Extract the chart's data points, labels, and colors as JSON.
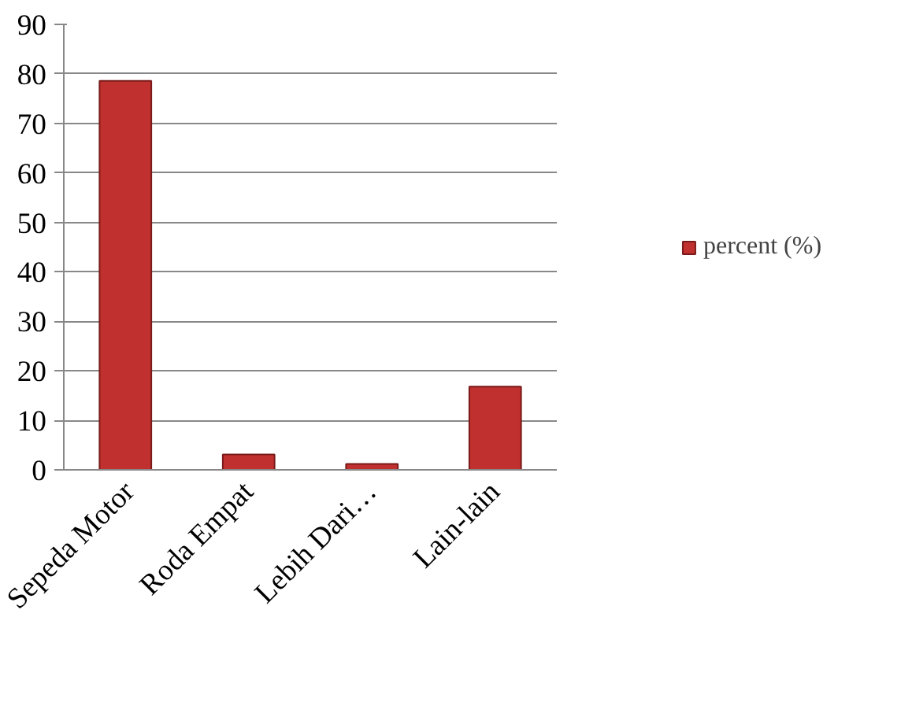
{
  "chart_data": {
    "type": "bar",
    "categories": [
      "Sepeda Motor",
      "Roda Empat",
      "Lebih Dari…",
      "Lain-lain"
    ],
    "series": [
      {
        "name": "percent (%)",
        "color": "#c0302e",
        "values": [
          78.6,
          3.1,
          1.2,
          16.8
        ]
      }
    ],
    "ylim": [
      0,
      90
    ],
    "yticks": [
      0,
      10,
      20,
      30,
      40,
      50,
      60,
      70,
      80,
      90
    ],
    "grid": "y",
    "legend": "right"
  }
}
